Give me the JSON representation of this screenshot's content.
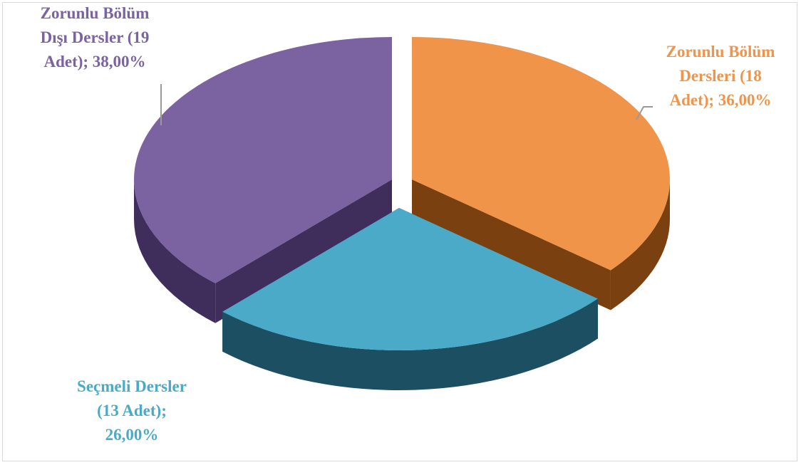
{
  "chart_data": {
    "type": "pie",
    "style": "3d-exploded",
    "slices": [
      {
        "label": "Zorunlu  Bölüm\nDersleri  (18\nAdet); 36,00%",
        "count": 18,
        "percent": 36.0,
        "color": "#f0944a",
        "dark": "#7a4010"
      },
      {
        "label": "Seçmeli Dersler\n(13 Adet);\n26,00%",
        "count": 13,
        "percent": 26.0,
        "color": "#4aaac8",
        "dark": "#1d4f62"
      },
      {
        "label": "Zorunlu  Bölüm\nDışı Dersler  (19\nAdet); 38,00%",
        "count": 19,
        "percent": 38.0,
        "color": "#7b62a0",
        "dark": "#3f2d5c"
      }
    ]
  }
}
